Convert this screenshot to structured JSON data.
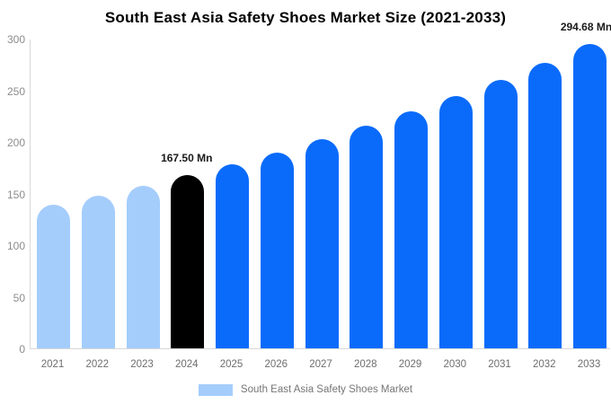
{
  "title": "South East Asia Safety Shoes Market Size (2021-2033)",
  "legend": {
    "label": "South East Asia Safety Shoes Market",
    "swatch_color": "#a4cdfc"
  },
  "colors": {
    "historical_bar": "#a4cdfc",
    "base_year_bar": "#000000",
    "forecast_bar": "#0a6bfb",
    "axis_line": "#d8d8d8",
    "y_tick_label": "#8c8c8c",
    "x_tick_label": "#6e6e6e",
    "annotation_text": "#1a1a1a",
    "title_text": "#000000"
  },
  "chart_data": {
    "type": "bar",
    "title": "South East Asia Safety Shoes Market Size (2021-2033)",
    "xlabel": "",
    "ylabel": "",
    "unit": "Mn",
    "categories": [
      "2021",
      "2022",
      "2023",
      "2024",
      "2025",
      "2026",
      "2027",
      "2028",
      "2029",
      "2030",
      "2031",
      "2032",
      "2033"
    ],
    "series": [
      {
        "name": "South East Asia Safety Shoes Market",
        "values": [
          138.9,
          147.9,
          157.4,
          167.5,
          178.4,
          190.0,
          202.3,
          215.4,
          229.4,
          244.3,
          260.1,
          277.0,
          294.68
        ]
      }
    ],
    "bar_colors": [
      "#a4cdfc",
      "#a4cdfc",
      "#a4cdfc",
      "#000000",
      "#0a6bfb",
      "#0a6bfb",
      "#0a6bfb",
      "#0a6bfb",
      "#0a6bfb",
      "#0a6bfb",
      "#0a6bfb",
      "#0a6bfb",
      "#0a6bfb"
    ],
    "annotations": [
      {
        "category": "2024",
        "text": "167.50 Mn",
        "dx": -1
      },
      {
        "category": "2033",
        "text": "294.68 Mn",
        "dx": -4
      }
    ],
    "ylim": [
      0,
      300
    ],
    "yticks": [
      0,
      50,
      100,
      150,
      200,
      250,
      300
    ],
    "grid": false,
    "legend_position": "bottom"
  }
}
